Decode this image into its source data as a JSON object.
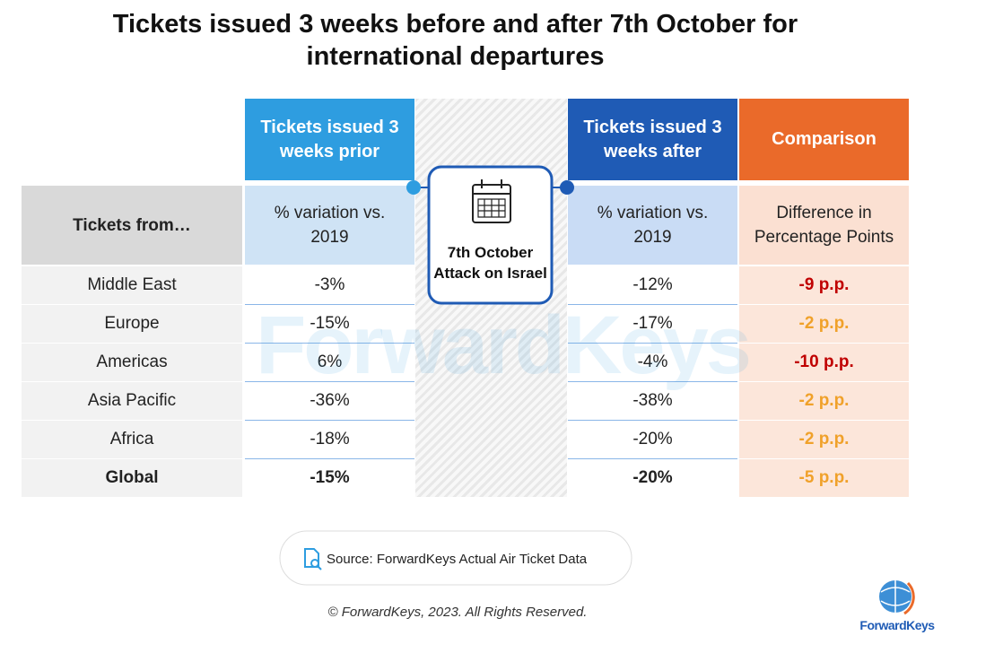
{
  "title": "Tickets issued 3 weeks before and after 7th October for international departures",
  "table": {
    "headers": {
      "prior": "Tickets issued 3 weeks prior",
      "after": "Tickets issued 3 weeks after",
      "comparison": "Comparison"
    },
    "subheaders": {
      "origin": "Tickets from…",
      "prior": "% variation vs. 2019",
      "after": "% variation vs. 2019",
      "comparison": "Difference in Percentage Points"
    },
    "rows": [
      {
        "origin": "Middle East",
        "prior": "-3%",
        "after": "-12%",
        "difference": "-9 p.p.",
        "difference_color": "#c00000"
      },
      {
        "origin": "Europe",
        "prior": "-15%",
        "after": "-17%",
        "difference": "-2 p.p.",
        "difference_color": "#f0a12a"
      },
      {
        "origin": "Americas",
        "prior": "6%",
        "after": "-4%",
        "difference": "-10 p.p.",
        "difference_color": "#c00000"
      },
      {
        "origin": "Asia Pacific",
        "prior": "-36%",
        "after": "-38%",
        "difference": "-2 p.p.",
        "difference_color": "#f0a12a"
      },
      {
        "origin": "Africa",
        "prior": "-18%",
        "after": "-20%",
        "difference": "-2 p.p.",
        "difference_color": "#f0a12a"
      },
      {
        "origin": "Global",
        "prior": "-15%",
        "after": "-20%",
        "difference": "-5 p.p.",
        "difference_color": "#f0a12a",
        "bold": true
      }
    ]
  },
  "event": "7th October Attack on Israel",
  "source": "Source: ForwardKeys Actual Air Ticket Data",
  "copyright": "© ForwardKeys, 2023. All Rights Reserved.",
  "logo": "ForwardKeys"
}
